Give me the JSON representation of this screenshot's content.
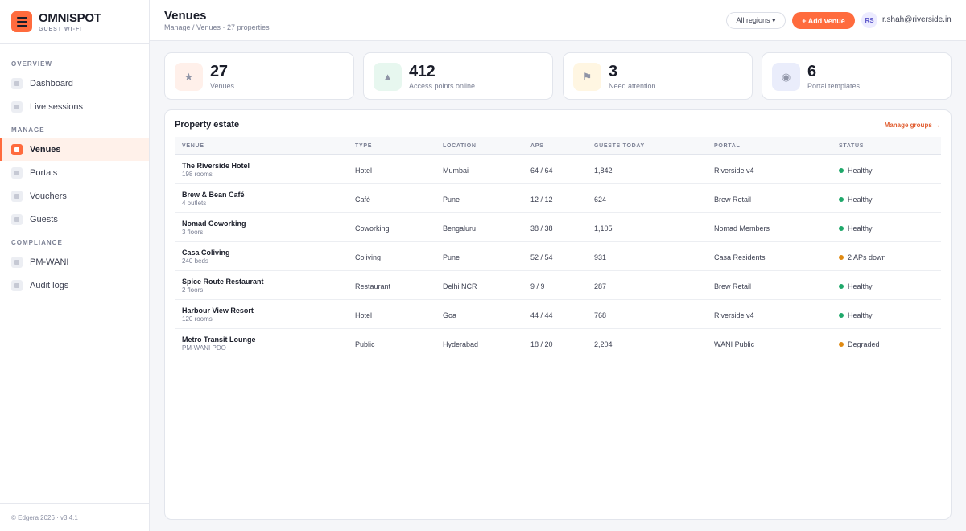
{
  "brand": {
    "name": "OMNISPOT",
    "sub": "GUEST WI-FI",
    "logo_icon": "menu-icon"
  },
  "sidebar": {
    "sections": [
      {
        "label": "OVERVIEW"
      },
      {
        "label": "MANAGE"
      },
      {
        "label": "COMPLIANCE"
      }
    ],
    "items": [
      {
        "label": "Dashboard",
        "active": false
      },
      {
        "label": "Live sessions",
        "active": false
      },
      {
        "label": "Venues",
        "active": true
      },
      {
        "label": "Portals",
        "active": false
      },
      {
        "label": "Vouchers",
        "active": false
      },
      {
        "label": "Guests",
        "active": false
      },
      {
        "label": "PM-WANI",
        "active": false
      },
      {
        "label": "Audit logs",
        "active": false
      }
    ],
    "footer": "© Edgera 2026 · v3.4.1"
  },
  "header": {
    "title": "Venues",
    "breadcrumb": "Manage / Venues · 27 properties",
    "region_select": "All regions ▾",
    "add_button": "+ Add venue",
    "avatar_initials": "RS",
    "user_email": "r.shah@riverside.in"
  },
  "stats": [
    {
      "value": "27",
      "label": "Venues",
      "glyph": "★",
      "icon": "star-icon",
      "bg": "#fff0ea"
    },
    {
      "value": "412",
      "label": "Access points online",
      "glyph": "▲",
      "icon": "signal-icon",
      "bg": "#e7f7ef"
    },
    {
      "value": "3",
      "label": "Need attention",
      "glyph": "⚑",
      "icon": "flag-icon",
      "bg": "#fff6e2"
    },
    {
      "value": "6",
      "label": "Portal templates",
      "glyph": "◉",
      "icon": "portal-icon",
      "bg": "#eaedfb"
    }
  ],
  "table": {
    "title": "Property estate",
    "action": "Manage groups →",
    "columns": [
      "VENUE",
      "TYPE",
      "LOCATION",
      "APS",
      "GUESTS TODAY",
      "PORTAL",
      "STATUS"
    ],
    "rows": [
      {
        "name": "The Riverside Hotel",
        "sub": "198 rooms",
        "type": "Hotel",
        "location": "Mumbai",
        "aps": "64 / 64",
        "guests": "1,842",
        "portal": "Riverside v4",
        "status": "Healthy",
        "status_color": "#1fa86a"
      },
      {
        "name": "Brew & Bean Café",
        "sub": "4 outlets",
        "type": "Café",
        "location": "Pune",
        "aps": "12 / 12",
        "guests": "624",
        "portal": "Brew Retail",
        "status": "Healthy",
        "status_color": "#1fa86a"
      },
      {
        "name": "Nomad Coworking",
        "sub": "3 floors",
        "type": "Coworking",
        "location": "Bengaluru",
        "aps": "38 / 38",
        "guests": "1,105",
        "portal": "Nomad Members",
        "status": "Healthy",
        "status_color": "#1fa86a"
      },
      {
        "name": "Casa Coliving",
        "sub": "240 beds",
        "type": "Coliving",
        "location": "Pune",
        "aps": "52 / 54",
        "guests": "931",
        "portal": "Casa Residents",
        "status": "2 APs down",
        "status_color": "#e08a12"
      },
      {
        "name": "Spice Route Restaurant",
        "sub": "2 floors",
        "type": "Restaurant",
        "location": "Delhi NCR",
        "aps": "9 / 9",
        "guests": "287",
        "portal": "Brew Retail",
        "status": "Healthy",
        "status_color": "#1fa86a"
      },
      {
        "name": "Harbour View Resort",
        "sub": "120 rooms",
        "type": "Hotel",
        "location": "Goa",
        "aps": "44 / 44",
        "guests": "768",
        "portal": "Riverside v4",
        "status": "Healthy",
        "status_color": "#1fa86a"
      },
      {
        "name": "Metro Transit Lounge",
        "sub": "PM-WANI PDO",
        "type": "Public",
        "location": "Hyderabad",
        "aps": "18 / 20",
        "guests": "2,204",
        "portal": "WANI Public",
        "status": "Degraded",
        "status_color": "#e08a12"
      }
    ]
  }
}
